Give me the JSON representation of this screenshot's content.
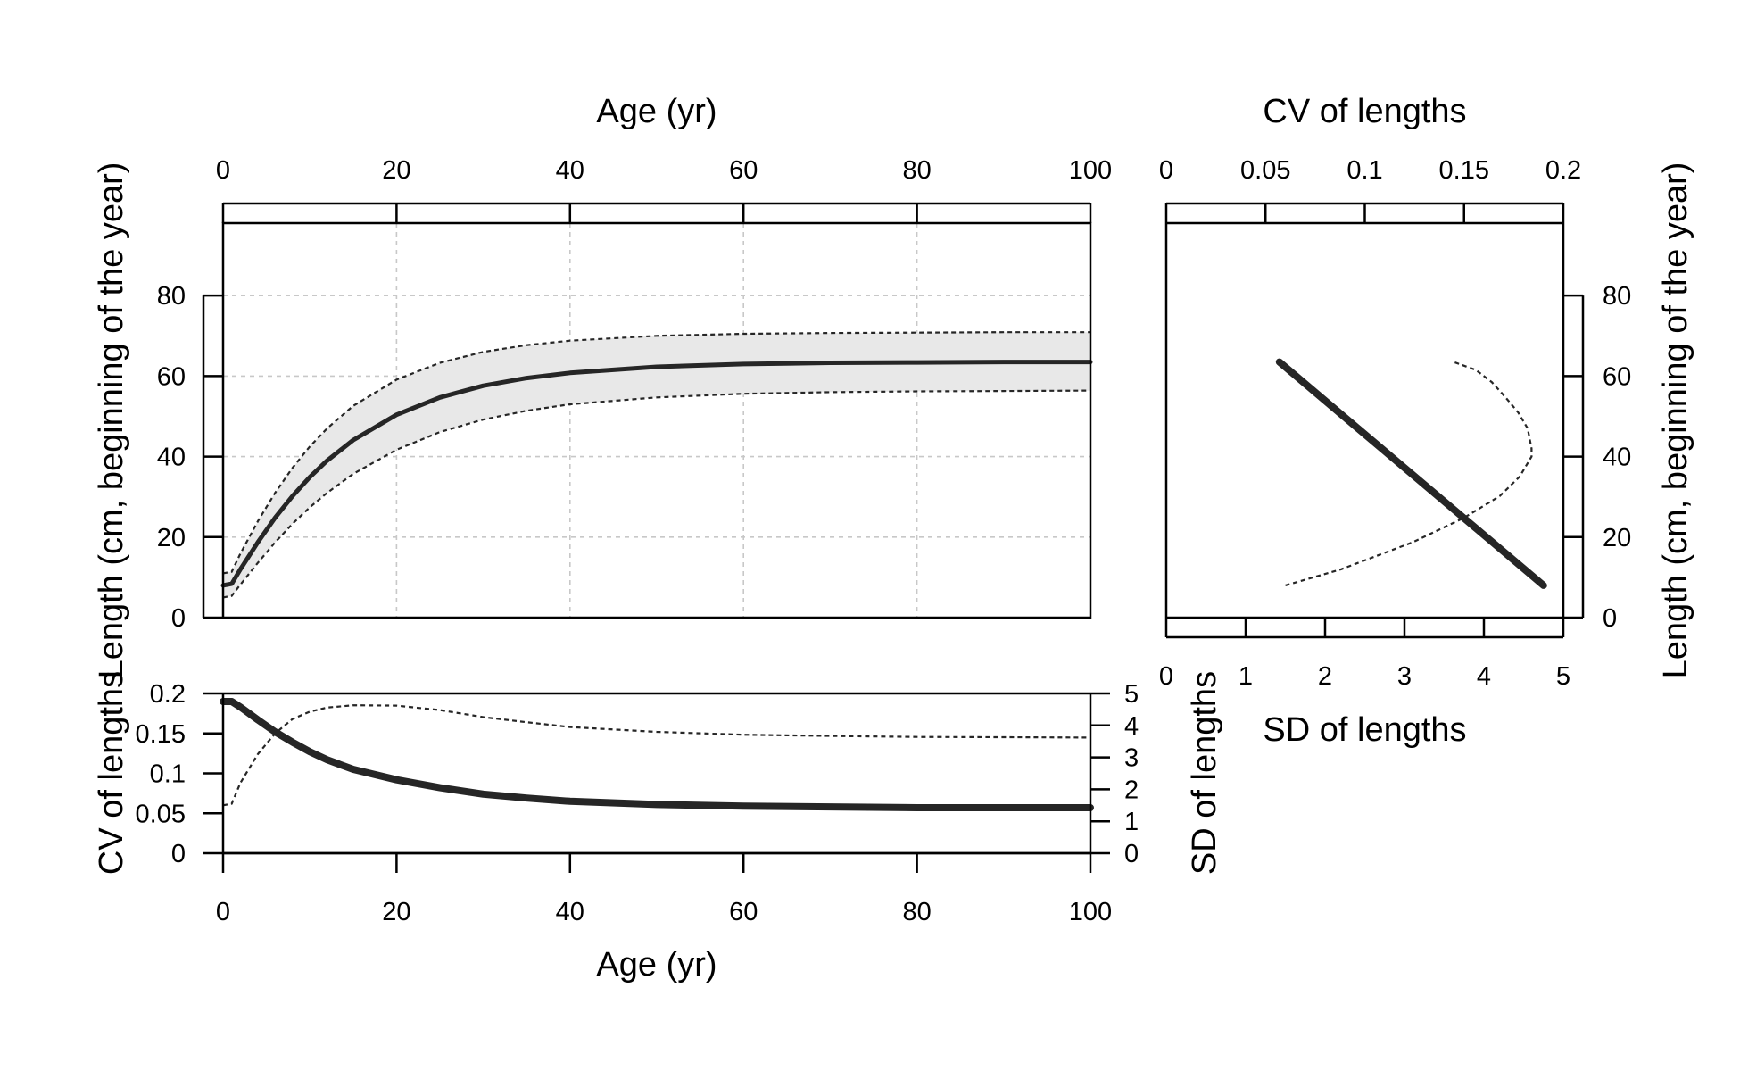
{
  "chart_data": [
    {
      "id": "growth",
      "type": "line",
      "xlabel": "Age (yr)",
      "ylabel": "Length (cm, beginning of the year)",
      "xlim": [
        0,
        100
      ],
      "ylim": [
        0,
        98
      ],
      "xticks": [
        0,
        20,
        40,
        60,
        80,
        100
      ],
      "yticks": [
        0,
        20,
        40,
        60,
        80
      ],
      "grid": true,
      "x": [
        0,
        1,
        2,
        4,
        6,
        8,
        10,
        12,
        15,
        20,
        25,
        30,
        35,
        40,
        50,
        60,
        70,
        80,
        90,
        100
      ],
      "series": [
        {
          "values": [
            8.0,
            8.4,
            12.0,
            18.7,
            24.8,
            30.2,
            34.9,
            39.0,
            44.1,
            50.4,
            54.7,
            57.6,
            59.5,
            60.8,
            62.3,
            63.0,
            63.3,
            63.4,
            63.5,
            63.5
          ]
        },
        {
          "values": [
            11.0,
            11.4,
            15.9,
            23.9,
            31.0,
            37.2,
            42.5,
            47.0,
            52.6,
            59.1,
            63.3,
            66.0,
            67.7,
            68.8,
            70.0,
            70.5,
            70.7,
            70.8,
            70.9,
            70.9
          ]
        },
        {
          "values": [
            5.0,
            5.4,
            8.2,
            13.6,
            18.7,
            23.3,
            27.4,
            31.0,
            35.7,
            41.7,
            46.1,
            49.2,
            51.4,
            53.0,
            54.7,
            55.6,
            56.0,
            56.2,
            56.3,
            56.4
          ]
        }
      ]
    },
    {
      "id": "cv-sd-by-age",
      "type": "line",
      "xlabel": "Age (yr)",
      "ylabel": "CV of lengths",
      "y2label": "SD of lengths",
      "xlim": [
        0,
        100
      ],
      "ylim": [
        0,
        0.2
      ],
      "y2lim": [
        0,
        5
      ],
      "xticks": [
        0,
        20,
        40,
        60,
        80,
        100
      ],
      "yticks": [
        0,
        0.05,
        0.1,
        0.15,
        0.2
      ],
      "ytick_labels": [
        "0",
        "0.05",
        "0.1",
        "0.15",
        "0.2"
      ],
      "y2ticks": [
        0,
        1,
        2,
        3,
        4,
        5
      ],
      "x": [
        0,
        1,
        2,
        4,
        6,
        8,
        10,
        12,
        15,
        20,
        25,
        30,
        35,
        40,
        50,
        60,
        70,
        80,
        90,
        100
      ],
      "series": [
        {
          "axis": "left",
          "values": [
            0.19,
            0.19,
            0.183,
            0.167,
            0.152,
            0.139,
            0.127,
            0.117,
            0.105,
            0.092,
            0.082,
            0.074,
            0.069,
            0.065,
            0.061,
            0.059,
            0.058,
            0.057,
            0.057,
            0.057
          ]
        },
        {
          "axis": "right",
          "values": [
            1.5,
            1.55,
            2.2,
            3.1,
            3.75,
            4.2,
            4.43,
            4.56,
            4.63,
            4.62,
            4.48,
            4.26,
            4.1,
            3.95,
            3.8,
            3.71,
            3.67,
            3.64,
            3.63,
            3.62
          ]
        }
      ]
    },
    {
      "id": "cv-sd-by-length",
      "type": "line",
      "xlabel_top": "CV of lengths",
      "xlabel_bottom": "SD of lengths",
      "ylabel": "Length (cm, beginning of the year)",
      "xlim_top": [
        0,
        0.2
      ],
      "xlim_bottom": [
        0,
        5
      ],
      "ylim": [
        0,
        98
      ],
      "xticks_top": [
        0,
        0.05,
        0.1,
        0.15,
        0.2
      ],
      "xtick_labels_top": [
        "0",
        "0.05",
        "0.1",
        "0.15",
        "0.2"
      ],
      "xticks_bottom": [
        0,
        1,
        2,
        3,
        4,
        5
      ],
      "yticks": [
        0,
        20,
        40,
        60,
        80
      ],
      "series": [
        {
          "axis": "top",
          "points": [
            [
              0.057,
              63.5
            ],
            [
              0.19,
              8.0
            ]
          ]
        },
        {
          "axis": "bottom",
          "points": [
            [
              1.5,
              8
            ],
            [
              2.2,
              12
            ],
            [
              3.1,
              18.7
            ],
            [
              3.75,
              24.8
            ],
            [
              4.2,
              30.2
            ],
            [
              4.45,
              35
            ],
            [
              4.6,
              40
            ],
            [
              4.6,
              42
            ],
            [
              4.55,
              47
            ],
            [
              4.43,
              51
            ],
            [
              4.26,
              55
            ],
            [
              4.1,
              58.5
            ],
            [
              3.9,
              61.5
            ],
            [
              3.62,
              63.5
            ]
          ]
        }
      ]
    }
  ]
}
